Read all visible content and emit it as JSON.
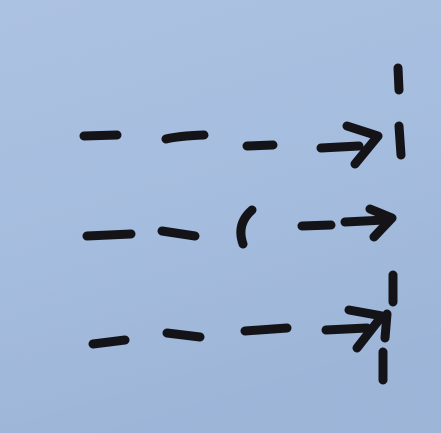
{
  "photo": {
    "subject": "ink-drawing-of-dashed-arrows-on-paper",
    "colors": {
      "paper_top": "#adc3e4",
      "paper_mid": "#a5bddf",
      "paper_bottom": "#9db5d8",
      "ink": "#141418"
    },
    "rows": [
      {
        "name": "arrow-row-1",
        "dash_count": 3,
        "has_bracket": false,
        "ends_at_barrier": true
      },
      {
        "name": "arrow-row-2",
        "dash_count": 2,
        "has_bracket": true,
        "ends_at_barrier": false
      },
      {
        "name": "arrow-row-3",
        "dash_count": 3,
        "has_bracket": false,
        "ends_at_barrier": true
      }
    ]
  }
}
